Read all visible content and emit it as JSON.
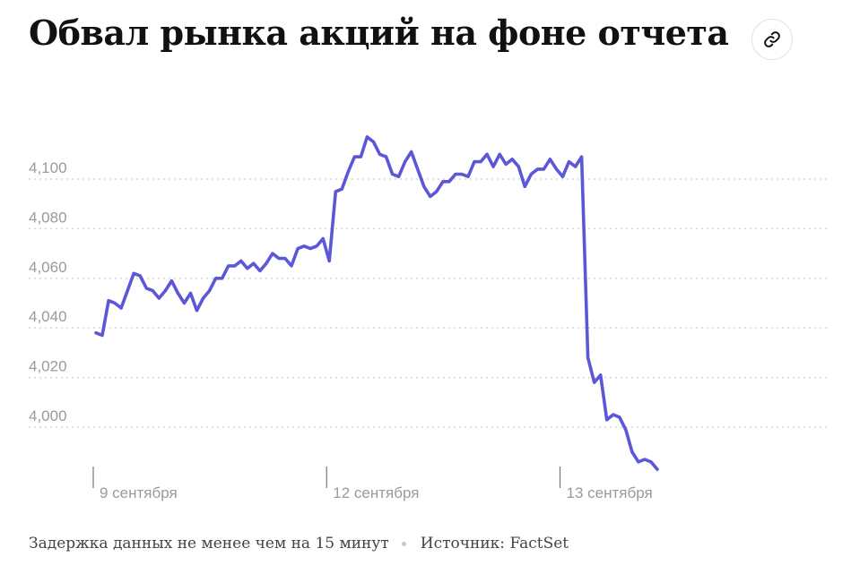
{
  "header": {
    "title": "Обвал рынка акций на фоне отчета",
    "link_icon": "link-icon"
  },
  "footer": {
    "delay_note": "Задержка данных не менее чем на 15 минут",
    "source": "Источник: FactSet"
  },
  "colors": {
    "line": "#5b57d6",
    "grid": "#d5d5d5",
    "tick_text": "#9a9a9a"
  },
  "chart_data": {
    "type": "line",
    "title": "Обвал рынка акций на фоне отчета",
    "xlabel": "",
    "ylabel": "",
    "ylim": [
      3983,
      4120
    ],
    "y_ticks": [
      {
        "value": 4000,
        "label": "4,000"
      },
      {
        "value": 4020,
        "label": "4,020"
      },
      {
        "value": 4040,
        "label": "4,040"
      },
      {
        "value": 4060,
        "label": "4,060"
      },
      {
        "value": 4080,
        "label": "4,080"
      },
      {
        "value": 4100,
        "label": "4,100"
      }
    ],
    "grid": true,
    "sessions": [
      {
        "label": "9 сентября",
        "start_index": 0
      },
      {
        "label": "12 сентября",
        "start_index": 37
      },
      {
        "label": "13 сентября",
        "start_index": 74
      }
    ],
    "series": [
      {
        "values": [
          4038,
          4037,
          4051,
          4050,
          4048,
          4055,
          4062,
          4061,
          4056,
          4055,
          4052,
          4055,
          4059,
          4054,
          4050,
          4054,
          4047,
          4052,
          4055,
          4060,
          4060,
          4065,
          4065,
          4067,
          4064,
          4066,
          4063,
          4066,
          4070,
          4068,
          4068,
          4065,
          4072,
          4073,
          4072,
          4073,
          4076,
          4067,
          4095,
          4096,
          4103,
          4109,
          4109,
          4117,
          4115,
          4110,
          4109,
          4102,
          4101,
          4107,
          4111,
          4104,
          4097,
          4093,
          4095,
          4099,
          4099,
          4102,
          4102,
          4101,
          4107,
          4107,
          4110,
          4105,
          4110,
          4106,
          4108,
          4105,
          4097,
          4102,
          4104,
          4104,
          4108,
          4104,
          4101,
          4107,
          4105,
          4109,
          4028,
          4018,
          4021,
          4003,
          4005,
          4004,
          3999,
          3990,
          3986,
          3987,
          3986,
          3983
        ]
      }
    ]
  }
}
